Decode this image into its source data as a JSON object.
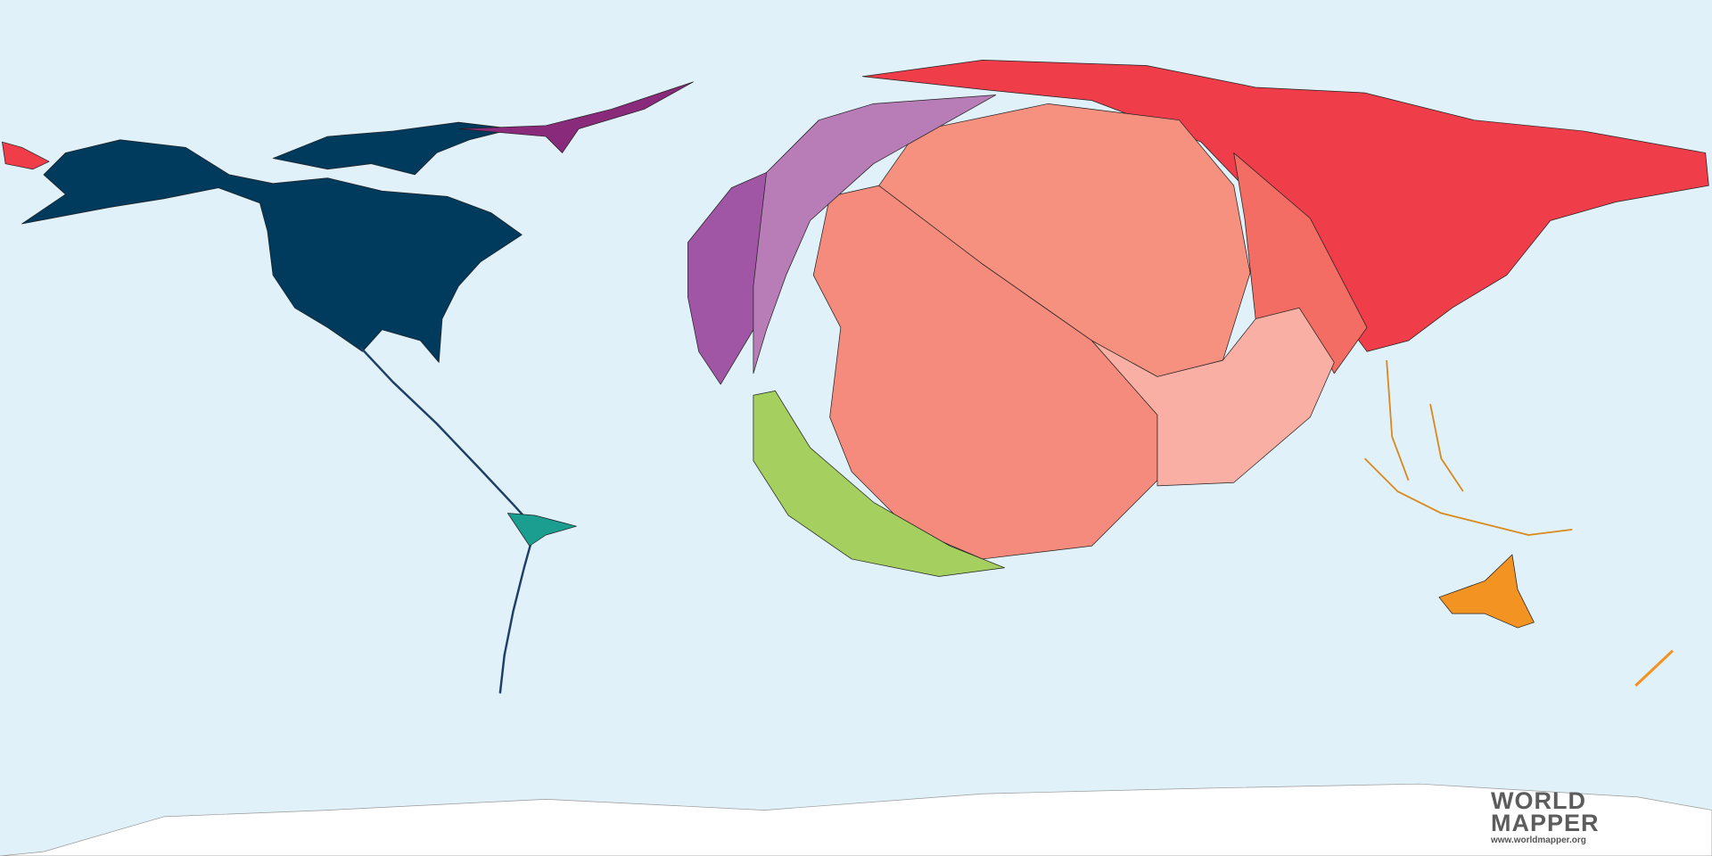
{
  "map": {
    "type": "cartogram",
    "background_color": "#e1f1f9",
    "regions": [
      {
        "id": "north-america",
        "color": "#003a5c"
      },
      {
        "id": "central-south-america",
        "color": "#1b9e8f"
      },
      {
        "id": "russia-north-asia",
        "color": "#ef3e4a"
      },
      {
        "id": "china",
        "color": "#f6907f"
      },
      {
        "id": "south-asia",
        "color": "#f58b7c"
      },
      {
        "id": "southeast-asia",
        "color": "#f9afa3"
      },
      {
        "id": "east-asia",
        "color": "#f36d64"
      },
      {
        "id": "western-europe",
        "color": "#a056a5"
      },
      {
        "id": "eastern-europe",
        "color": "#b87db7"
      },
      {
        "id": "africa",
        "color": "#a5cf5e"
      },
      {
        "id": "oceania",
        "color": "#f39321"
      },
      {
        "id": "antarctica",
        "color": "#ffffff"
      }
    ]
  },
  "logo": {
    "line1": "WORLD",
    "line2": "MAPPER",
    "url": "www.worldmapper.org"
  }
}
